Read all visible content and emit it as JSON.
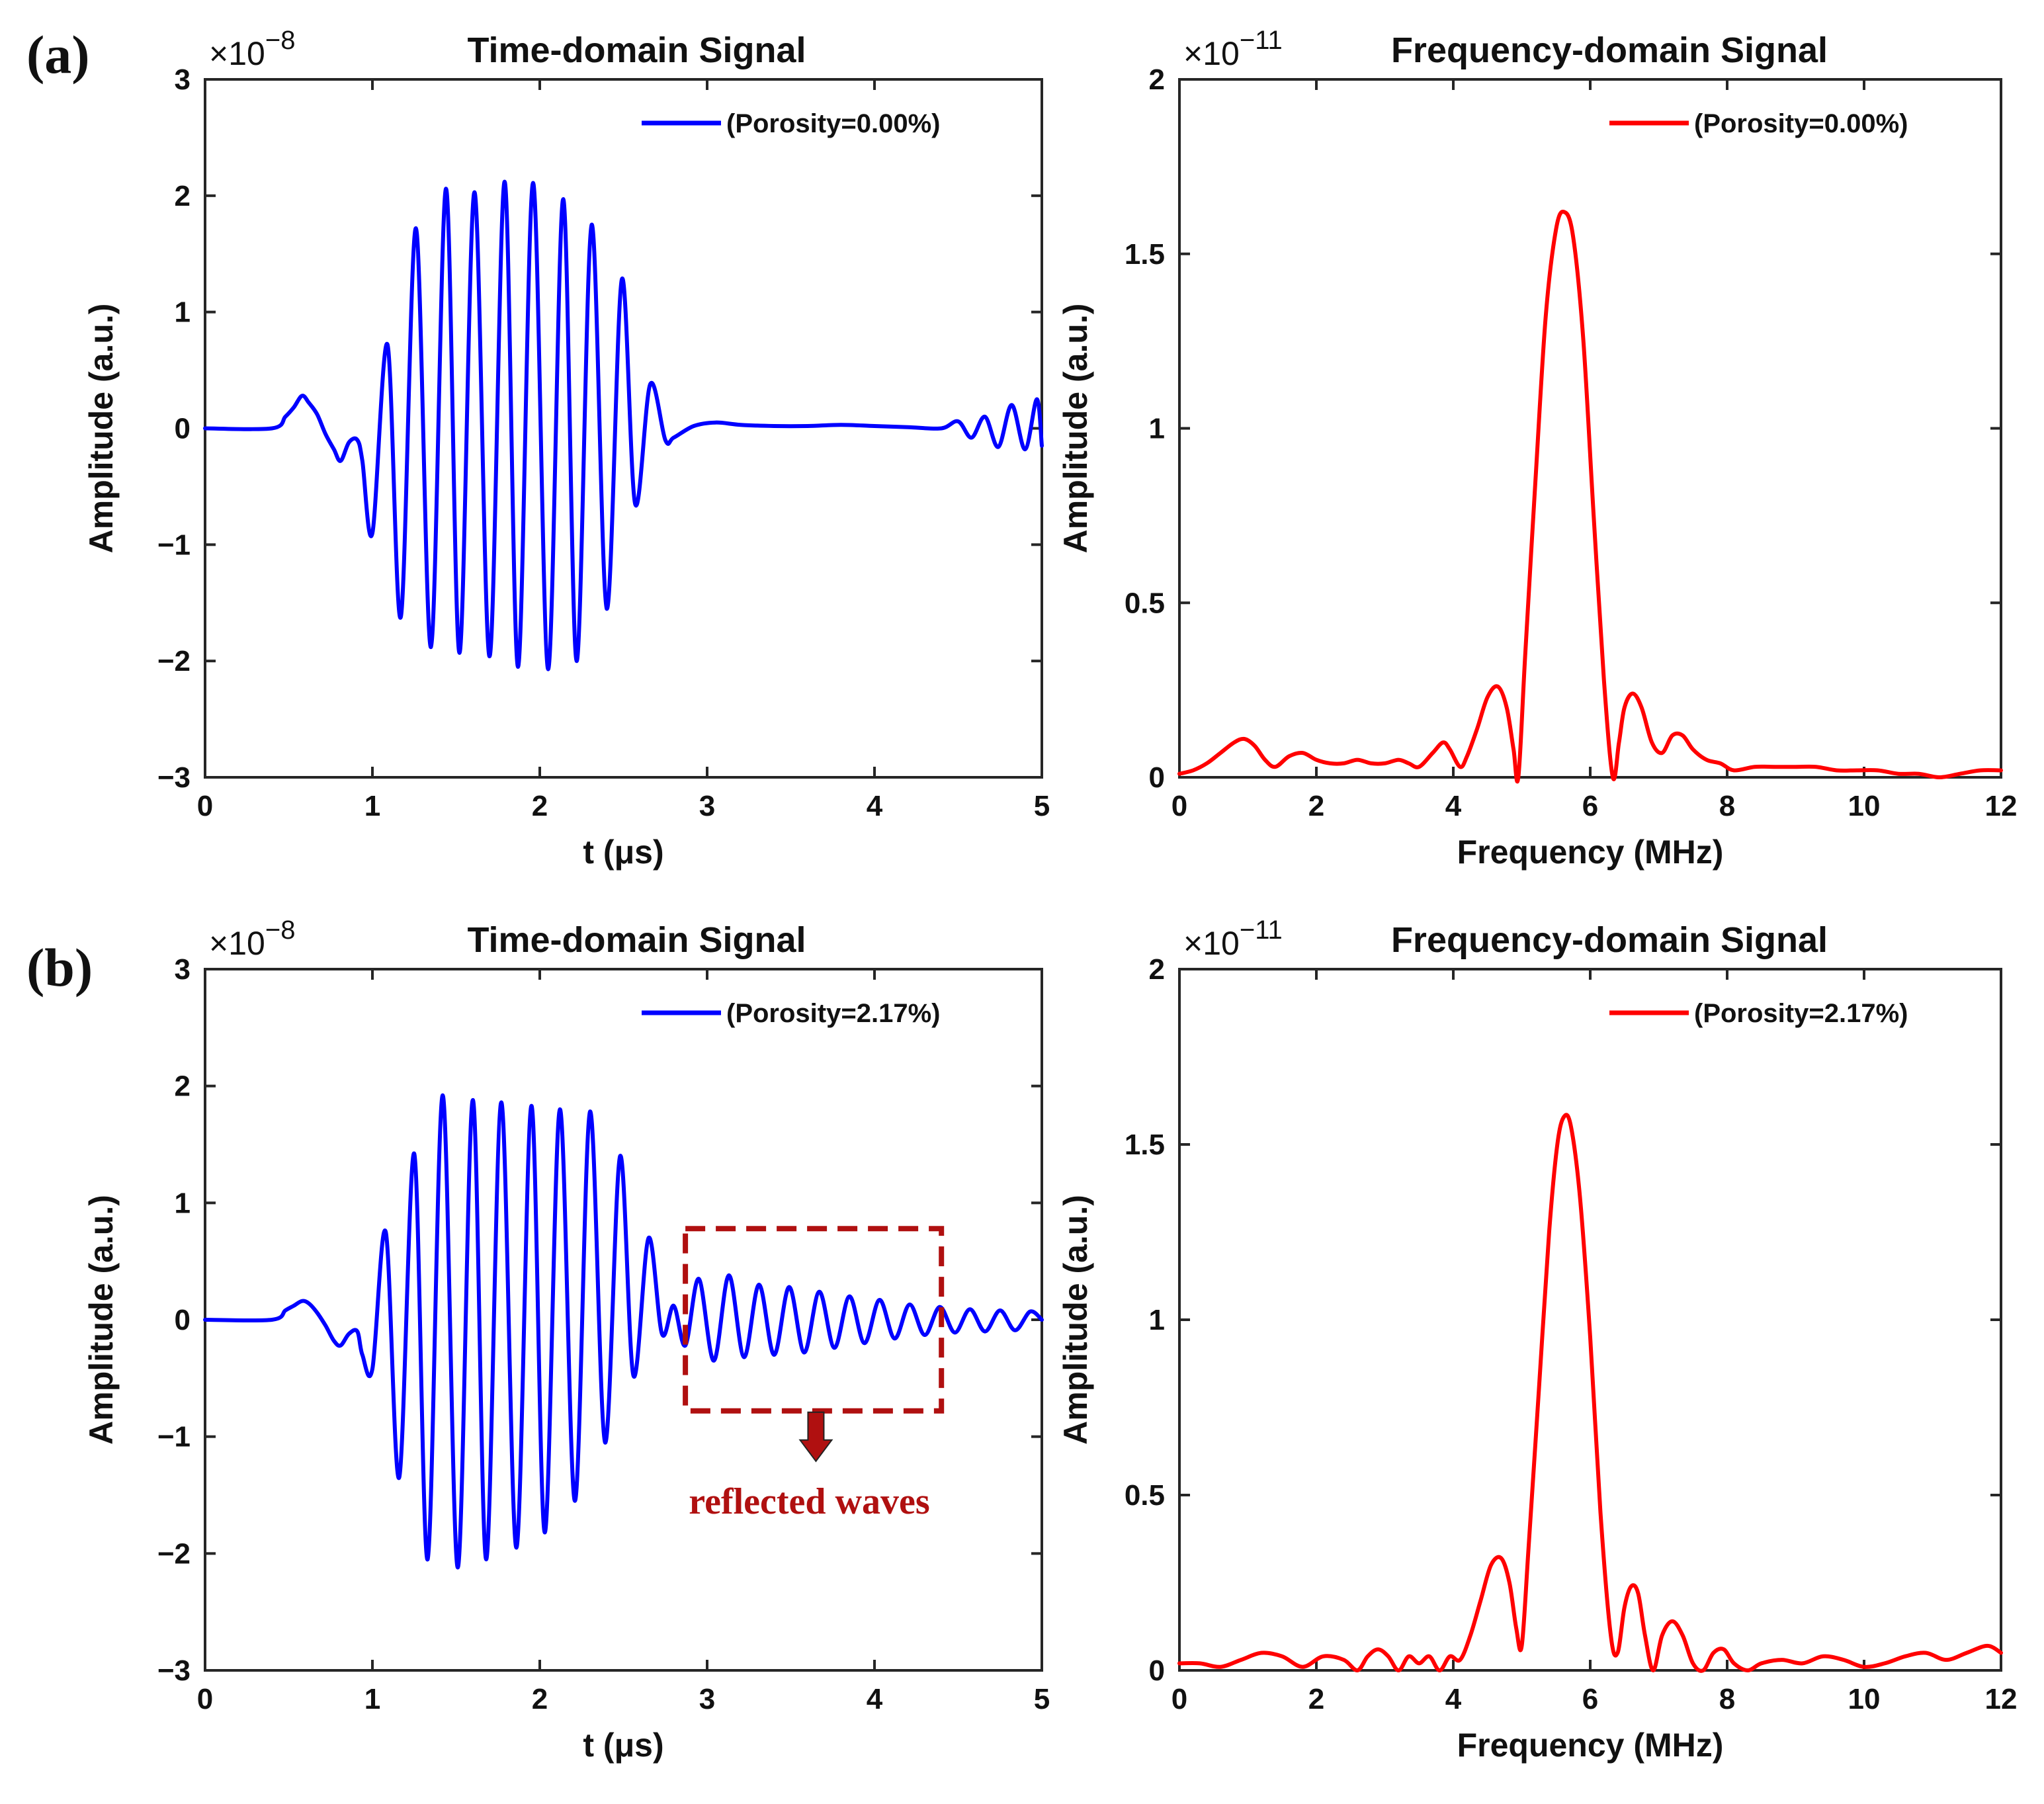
{
  "colors": {
    "time_series": "#0000FF",
    "freq_series": "#FF0000",
    "annotation": "#B01010"
  },
  "chart_data": [
    {
      "id": "a-time",
      "panel_label": "(a)",
      "type": "line",
      "title": "Time-domain Signal",
      "xlabel": "t (μs)",
      "ylabel": "Amplitude (a.u.)",
      "multiplier": "×10",
      "multiplier_exp": "−8",
      "xlim": [
        0,
        5
      ],
      "ylim": [
        -3,
        3
      ],
      "xticks": [
        0,
        1,
        2,
        3,
        4,
        5
      ],
      "yticks": [
        -3,
        -2,
        -1,
        0,
        1,
        2,
        3
      ],
      "ytick_labels": [
        "−3",
        "−2",
        "−1",
        "0",
        "1",
        "2",
        "3"
      ],
      "legend": "(Porosity=0.00%)",
      "legend_position": "top-right",
      "series": [
        {
          "name": "(Porosity=0.00%)",
          "color": "#0000FF",
          "kind": "time",
          "x": [
            0.0,
            0.4,
            0.48,
            0.53,
            0.58,
            0.62,
            0.67,
            0.72,
            0.77,
            0.81,
            0.86,
            0.91,
            0.94
          ],
          "y": [
            0.0,
            0.0,
            0.1,
            0.18,
            0.28,
            0.22,
            0.12,
            -0.05,
            -0.18,
            -0.28,
            -0.12,
            -0.1,
            -0.28
          ],
          "burst": {
            "f": 5.7,
            "start": 0.94,
            "peaks": [
              [
                1.0,
                -0.9
              ],
              [
                1.09,
                0.72
              ],
              [
                1.17,
                -1.62
              ],
              [
                1.26,
                1.72
              ],
              [
                1.35,
                -1.88
              ],
              [
                1.44,
                2.06
              ],
              [
                1.52,
                -1.93
              ],
              [
                1.61,
                2.03
              ],
              [
                1.7,
                -1.96
              ],
              [
                1.79,
                2.12
              ],
              [
                1.87,
                -2.05
              ],
              [
                1.96,
                2.11
              ],
              [
                2.05,
                -2.07
              ],
              [
                2.14,
                1.97
              ],
              [
                2.22,
                -2.0
              ],
              [
                2.31,
                1.75
              ],
              [
                2.4,
                -1.55
              ],
              [
                2.49,
                1.28
              ],
              [
                2.57,
                -0.65
              ],
              [
                2.66,
                0.38
              ],
              [
                2.75,
                -0.1
              ]
            ],
            "tail": [
              [
                2.8,
                -0.08
              ],
              [
                2.92,
                0.02
              ],
              [
                3.05,
                0.05
              ],
              [
                3.2,
                0.03
              ],
              [
                3.4,
                0.02
              ],
              [
                3.6,
                0.02
              ],
              [
                3.8,
                0.03
              ],
              [
                4.0,
                0.02
              ],
              [
                4.2,
                0.01
              ],
              [
                4.4,
                0.0
              ]
            ],
            "end_peaks": [
              [
                4.5,
                0.06
              ],
              [
                4.58,
                -0.08
              ],
              [
                4.66,
                0.1
              ],
              [
                4.74,
                -0.16
              ],
              [
                4.82,
                0.2
              ],
              [
                4.9,
                -0.18
              ],
              [
                4.97,
                0.25
              ],
              [
                5.0,
                -0.15
              ]
            ]
          }
        }
      ]
    },
    {
      "id": "a-freq",
      "type": "line",
      "title": "Frequency-domain Signal",
      "xlabel": "Frequency (MHz)",
      "ylabel": "Amplitude (a.u.)",
      "multiplier": "×10",
      "multiplier_exp": "−11",
      "xlim": [
        0,
        12
      ],
      "ylim": [
        0,
        2
      ],
      "xticks": [
        0,
        2,
        4,
        6,
        8,
        10,
        12
      ],
      "yticks": [
        0,
        0.5,
        1,
        1.5,
        2
      ],
      "ytick_labels": [
        "0",
        "0.5",
        "1",
        "1.5",
        "2"
      ],
      "legend": "(Porosity=0.00%)",
      "legend_position": "top-right",
      "series": [
        {
          "name": "(Porosity=0.00%)",
          "color": "#FF0000",
          "kind": "freq",
          "x": [
            0.0,
            0.2,
            0.4,
            0.6,
            0.8,
            0.95,
            1.1,
            1.25,
            1.4,
            1.6,
            1.8,
            2.0,
            2.2,
            2.4,
            2.6,
            2.8,
            3.0,
            3.2,
            3.35,
            3.5,
            3.7,
            3.85,
            3.95,
            4.1,
            4.2,
            4.35,
            4.5,
            4.65,
            4.78,
            4.88,
            4.95,
            5.05,
            5.2,
            5.35,
            5.5,
            5.62,
            5.75,
            5.9,
            6.05,
            6.2,
            6.33,
            6.42,
            6.5,
            6.62,
            6.75,
            6.9,
            7.05,
            7.2,
            7.35,
            7.5,
            7.7,
            7.9,
            8.1,
            8.4,
            8.7,
            9.0,
            9.3,
            9.6,
            9.9,
            10.2,
            10.5,
            10.8,
            11.1,
            11.4,
            11.7,
            12.0
          ],
          "y": [
            0.01,
            0.02,
            0.04,
            0.07,
            0.1,
            0.11,
            0.09,
            0.05,
            0.03,
            0.06,
            0.07,
            0.05,
            0.04,
            0.04,
            0.05,
            0.04,
            0.04,
            0.05,
            0.04,
            0.03,
            0.07,
            0.1,
            0.08,
            0.03,
            0.06,
            0.14,
            0.23,
            0.26,
            0.2,
            0.08,
            0.0,
            0.35,
            0.85,
            1.32,
            1.57,
            1.62,
            1.55,
            1.25,
            0.75,
            0.28,
            0.0,
            0.1,
            0.2,
            0.24,
            0.2,
            0.1,
            0.07,
            0.12,
            0.12,
            0.08,
            0.05,
            0.04,
            0.02,
            0.03,
            0.03,
            0.03,
            0.03,
            0.02,
            0.02,
            0.02,
            0.01,
            0.01,
            0.0,
            0.01,
            0.02,
            0.02
          ]
        }
      ]
    },
    {
      "id": "b-time",
      "panel_label": "(b)",
      "type": "line",
      "title": "Time-domain Signal",
      "xlabel": "t (μs)",
      "ylabel": "Amplitude (a.u.)",
      "multiplier": "×10",
      "multiplier_exp": "−8",
      "xlim": [
        0,
        5
      ],
      "ylim": [
        -3,
        3
      ],
      "xticks": [
        0,
        1,
        2,
        3,
        4,
        5
      ],
      "yticks": [
        -3,
        -2,
        -1,
        0,
        1,
        2,
        3
      ],
      "ytick_labels": [
        "−3",
        "−2",
        "−1",
        "0",
        "1",
        "2",
        "3"
      ],
      "legend": "(Porosity=2.17%)",
      "legend_position": "top-right",
      "annotation": {
        "text": "reflected waves",
        "box_x": [
          2.87,
          4.4
        ],
        "box_y": [
          -0.78,
          0.78
        ],
        "arrow_x": 3.65
      },
      "series": [
        {
          "name": "(Porosity=2.17%)",
          "color": "#0000FF",
          "kind": "time",
          "x": [
            0.0,
            0.4,
            0.48,
            0.53,
            0.58,
            0.62,
            0.67,
            0.72,
            0.77,
            0.81,
            0.86,
            0.91,
            0.94
          ],
          "y": [
            0.0,
            0.0,
            0.08,
            0.12,
            0.16,
            0.14,
            0.06,
            -0.05,
            -0.18,
            -0.22,
            -0.12,
            -0.1,
            -0.3
          ],
          "burst": {
            "f": 5.7,
            "start": 0.94,
            "peaks": [
              [
                1.0,
                -0.42
              ],
              [
                1.08,
                0.75
              ],
              [
                1.16,
                -1.35
              ],
              [
                1.25,
                1.42
              ],
              [
                1.33,
                -2.05
              ],
              [
                1.42,
                1.92
              ],
              [
                1.51,
                -2.12
              ],
              [
                1.6,
                1.88
              ],
              [
                1.68,
                -2.05
              ],
              [
                1.77,
                1.86
              ],
              [
                1.86,
                -1.95
              ],
              [
                1.95,
                1.83
              ],
              [
                2.03,
                -1.82
              ],
              [
                2.12,
                1.8
              ],
              [
                2.21,
                -1.55
              ],
              [
                2.3,
                1.78
              ],
              [
                2.39,
                -1.05
              ],
              [
                2.48,
                1.4
              ],
              [
                2.56,
                -0.48
              ],
              [
                2.65,
                0.7
              ],
              [
                2.73,
                -0.12
              ],
              [
                2.8,
                0.12
              ],
              [
                2.87,
                -0.22
              ]
            ],
            "tail": [
              [
                2.95,
                0.35
              ],
              [
                3.04,
                -0.35
              ],
              [
                3.13,
                0.38
              ],
              [
                3.22,
                -0.32
              ],
              [
                3.31,
                0.3
              ],
              [
                3.4,
                -0.3
              ],
              [
                3.49,
                0.28
              ],
              [
                3.58,
                -0.28
              ],
              [
                3.67,
                0.24
              ],
              [
                3.76,
                -0.24
              ],
              [
                3.85,
                0.2
              ],
              [
                3.94,
                -0.2
              ],
              [
                4.03,
                0.17
              ],
              [
                4.12,
                -0.16
              ],
              [
                4.21,
                0.13
              ],
              [
                4.3,
                -0.13
              ],
              [
                4.39,
                0.11
              ],
              [
                4.48,
                -0.11
              ],
              [
                4.57,
                0.09
              ],
              [
                4.66,
                -0.1
              ],
              [
                4.75,
                0.08
              ],
              [
                4.84,
                -0.09
              ],
              [
                4.93,
                0.07
              ],
              [
                5.0,
                0.0
              ]
            ],
            "end_peaks": []
          }
        }
      ]
    },
    {
      "id": "b-freq",
      "type": "line",
      "title": "Frequency-domain Signal",
      "xlabel": "Frequency (MHz)",
      "ylabel": "Amplitude (a.u.)",
      "multiplier": "×10",
      "multiplier_exp": "−11",
      "xlim": [
        0,
        12
      ],
      "ylim": [
        0,
        2
      ],
      "xticks": [
        0,
        2,
        4,
        6,
        8,
        10,
        12
      ],
      "yticks": [
        0,
        0.5,
        1,
        1.5,
        2
      ],
      "ytick_labels": [
        "0",
        "0.5",
        "1",
        "1.5",
        "2"
      ],
      "legend": "(Porosity=2.17%)",
      "legend_position": "top-right",
      "series": [
        {
          "name": "(Porosity=2.17%)",
          "color": "#FF0000",
          "kind": "freq",
          "x": [
            0.0,
            0.3,
            0.6,
            0.9,
            1.2,
            1.5,
            1.8,
            2.1,
            2.4,
            2.6,
            2.75,
            2.9,
            3.05,
            3.2,
            3.35,
            3.5,
            3.65,
            3.8,
            3.95,
            4.1,
            4.25,
            4.4,
            4.55,
            4.7,
            4.82,
            4.92,
            5.0,
            5.1,
            5.25,
            5.4,
            5.52,
            5.62,
            5.72,
            5.85,
            6.0,
            6.15,
            6.3,
            6.4,
            6.5,
            6.6,
            6.7,
            6.8,
            6.92,
            7.05,
            7.2,
            7.35,
            7.5,
            7.65,
            7.8,
            7.95,
            8.1,
            8.3,
            8.5,
            8.8,
            9.1,
            9.4,
            9.7,
            10.0,
            10.3,
            10.6,
            10.9,
            11.2,
            11.5,
            11.8,
            12.0
          ],
          "y": [
            0.02,
            0.02,
            0.01,
            0.03,
            0.05,
            0.04,
            0.01,
            0.04,
            0.03,
            0.0,
            0.04,
            0.06,
            0.04,
            0.0,
            0.04,
            0.02,
            0.04,
            0.0,
            0.04,
            0.03,
            0.1,
            0.2,
            0.3,
            0.32,
            0.25,
            0.12,
            0.07,
            0.35,
            0.8,
            1.25,
            1.5,
            1.58,
            1.55,
            1.35,
            0.95,
            0.45,
            0.1,
            0.05,
            0.18,
            0.24,
            0.22,
            0.1,
            0.0,
            0.1,
            0.14,
            0.1,
            0.02,
            0.0,
            0.05,
            0.06,
            0.02,
            0.0,
            0.02,
            0.03,
            0.02,
            0.04,
            0.03,
            0.01,
            0.02,
            0.04,
            0.05,
            0.03,
            0.05,
            0.07,
            0.05
          ]
        }
      ]
    }
  ]
}
